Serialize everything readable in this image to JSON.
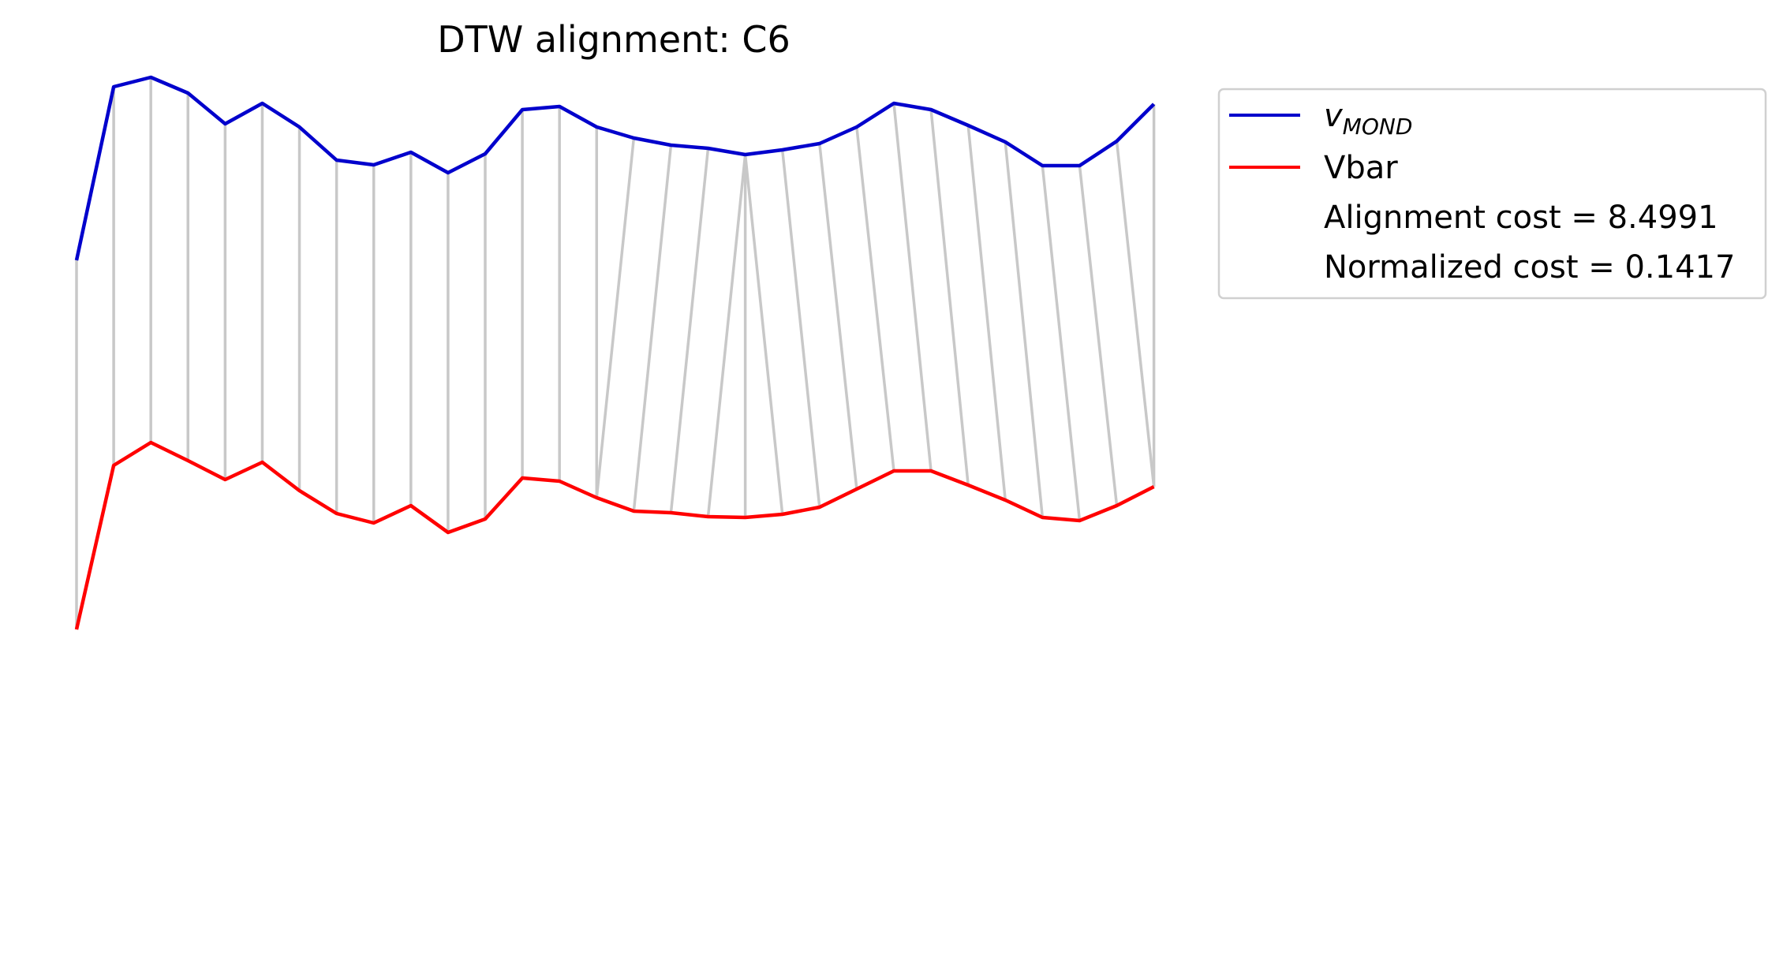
{
  "chart_data": {
    "type": "line",
    "title": "DTW alignment: C6",
    "xlabel": "",
    "ylabel": "",
    "grid": false,
    "axes_visible": false,
    "legend_position": "upper-right-outside",
    "series": [
      {
        "name_base": "v",
        "name_subscript": "MOND",
        "color": "#0000cc",
        "values": [
          330,
          110,
          98,
          118,
          157,
          131,
          161,
          203,
          209,
          193,
          219,
          195,
          139,
          135,
          161,
          175,
          184,
          188,
          196,
          190,
          182,
          161,
          131,
          139,
          159,
          180,
          210,
          210,
          179,
          132
        ]
      },
      {
        "name": "Vbar",
        "color": "#ff0000",
        "values": [
          798,
          590,
          561,
          584,
          608,
          586,
          622,
          651,
          663,
          641,
          675,
          658,
          606,
          610,
          631,
          648,
          650,
          655,
          656,
          652,
          643,
          620,
          597,
          597,
          615,
          634,
          656,
          660,
          641,
          617
        ]
      }
    ],
    "alignment": {
      "color": "#c8c8c8",
      "pairs": [
        [
          0,
          0
        ],
        [
          1,
          1
        ],
        [
          2,
          2
        ],
        [
          3,
          3
        ],
        [
          4,
          4
        ],
        [
          5,
          5
        ],
        [
          6,
          6
        ],
        [
          7,
          7
        ],
        [
          8,
          8
        ],
        [
          9,
          9
        ],
        [
          10,
          10
        ],
        [
          11,
          11
        ],
        [
          12,
          12
        ],
        [
          13,
          13
        ],
        [
          14,
          14
        ],
        [
          15,
          14
        ],
        [
          16,
          15
        ],
        [
          17,
          16
        ],
        [
          18,
          17
        ],
        [
          18,
          18
        ],
        [
          18,
          19
        ],
        [
          19,
          20
        ],
        [
          20,
          21
        ],
        [
          21,
          22
        ],
        [
          22,
          23
        ],
        [
          23,
          24
        ],
        [
          24,
          25
        ],
        [
          25,
          26
        ],
        [
          26,
          27
        ],
        [
          27,
          28
        ],
        [
          28,
          29
        ],
        [
          29,
          29
        ]
      ]
    },
    "legend_notes": [
      "Alignment cost = 8.4991",
      "Normalized cost = 0.1417"
    ]
  }
}
